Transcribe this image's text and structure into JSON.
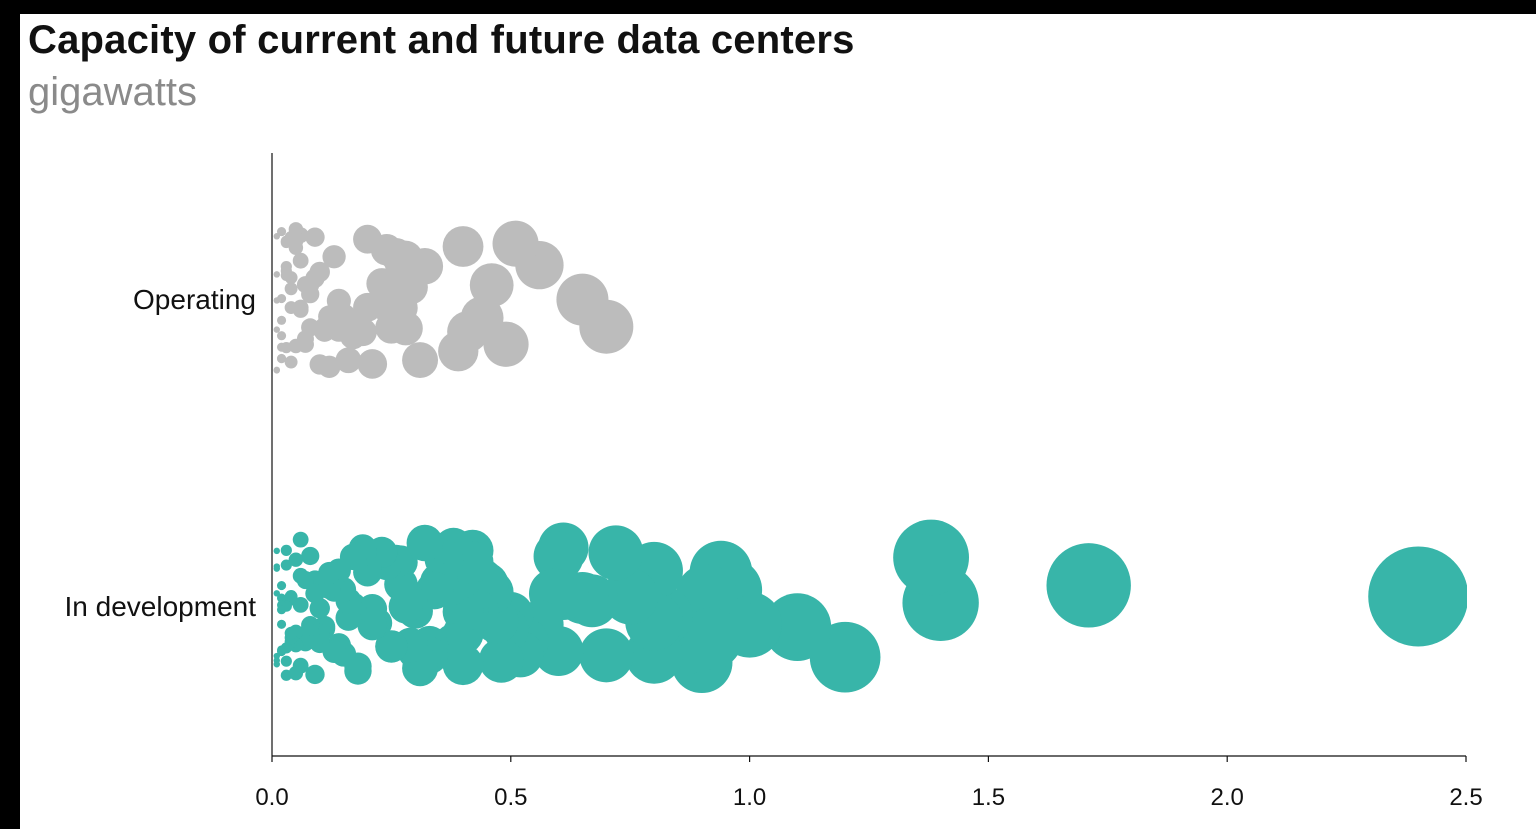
{
  "title": "Capacity of current and future data centers",
  "subtitle": "gigawatts",
  "colors": {
    "operating": "#bcbcbc",
    "in_development": "#38b5a9",
    "axis": "#111111",
    "title": "#111111",
    "subtitle": "#8a8a8a"
  },
  "chart_data": {
    "type": "scatter",
    "title": "Capacity of current and future data centers",
    "subtitle": "gigawatts",
    "xlabel": "",
    "ylabel": "",
    "xlim": [
      0,
      2.5
    ],
    "x_ticks": [
      0.0,
      0.5,
      1.0,
      1.5,
      2.0,
      2.5
    ],
    "x_tick_labels": [
      "0.0",
      "0.5",
      "1.0",
      "1.5",
      "2.0",
      "2.5"
    ],
    "categories": [
      "Operating",
      "In development"
    ],
    "grid": false,
    "legend": "none",
    "marker_area_encodes": "x value",
    "series": [
      {
        "category": "Operating",
        "points": [
          0.7,
          0.65,
          0.56,
          0.51,
          0.49,
          0.46,
          0.44,
          0.41,
          0.4,
          0.39,
          0.32,
          0.31,
          0.29,
          0.28,
          0.28,
          0.27,
          0.27,
          0.26,
          0.25,
          0.24,
          0.24,
          0.23,
          0.21,
          0.2,
          0.2,
          0.19,
          0.18,
          0.17,
          0.17,
          0.16,
          0.15,
          0.14,
          0.14,
          0.13,
          0.12,
          0.12,
          0.11,
          0.11,
          0.1,
          0.1,
          0.09,
          0.09,
          0.08,
          0.08,
          0.08,
          0.07,
          0.07,
          0.07,
          0.06,
          0.06,
          0.06,
          0.06,
          0.05,
          0.05,
          0.05,
          0.05,
          0.04,
          0.04,
          0.04,
          0.04,
          0.04,
          0.03,
          0.03,
          0.03,
          0.03,
          0.03,
          0.03,
          0.02,
          0.02,
          0.02,
          0.02,
          0.02,
          0.02,
          0.02,
          0.01,
          0.01,
          0.01,
          0.01,
          0.01,
          0.01
        ]
      },
      {
        "category": "In development",
        "points": [
          2.4,
          1.71,
          1.4,
          1.38,
          1.2,
          1.1,
          1.0,
          1.0,
          0.96,
          0.95,
          0.94,
          0.91,
          0.9,
          0.92,
          0.86,
          0.82,
          0.8,
          0.8,
          0.8,
          0.75,
          0.72,
          0.7,
          0.67,
          0.65,
          0.61,
          0.61,
          0.6,
          0.6,
          0.59,
          0.56,
          0.53,
          0.52,
          0.5,
          0.49,
          0.48,
          0.47,
          0.46,
          0.45,
          0.44,
          0.43,
          0.42,
          0.42,
          0.41,
          0.4,
          0.4,
          0.4,
          0.39,
          0.38,
          0.38,
          0.37,
          0.36,
          0.35,
          0.34,
          0.33,
          0.33,
          0.32,
          0.31,
          0.3,
          0.3,
          0.29,
          0.29,
          0.28,
          0.27,
          0.27,
          0.26,
          0.25,
          0.25,
          0.24,
          0.23,
          0.23,
          0.22,
          0.21,
          0.21,
          0.2,
          0.2,
          0.19,
          0.19,
          0.18,
          0.18,
          0.17,
          0.17,
          0.16,
          0.16,
          0.15,
          0.15,
          0.14,
          0.14,
          0.13,
          0.13,
          0.12,
          0.12,
          0.11,
          0.11,
          0.1,
          0.1,
          0.1,
          0.09,
          0.09,
          0.09,
          0.08,
          0.08,
          0.08,
          0.07,
          0.07,
          0.07,
          0.07,
          0.06,
          0.06,
          0.06,
          0.06,
          0.05,
          0.05,
          0.05,
          0.05,
          0.05,
          0.04,
          0.04,
          0.04,
          0.04,
          0.04,
          0.03,
          0.03,
          0.03,
          0.03,
          0.03,
          0.03,
          0.02,
          0.02,
          0.02,
          0.02,
          0.02,
          0.02,
          0.02,
          0.01,
          0.01,
          0.01,
          0.01,
          0.01,
          0.01,
          0.01
        ]
      }
    ]
  }
}
